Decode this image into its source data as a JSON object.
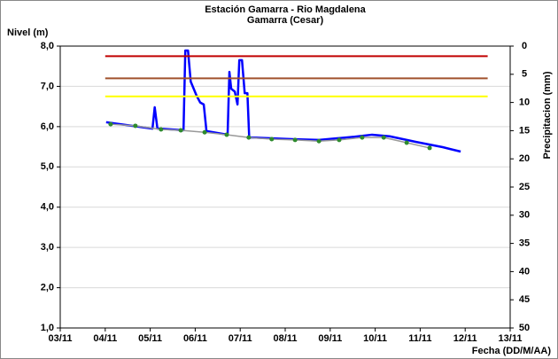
{
  "chart_data": {
    "type": "line",
    "title": "Estación Gamarra - Rio Magdalena",
    "subtitle": "Gamarra (Cesar)",
    "y_label": "Nivel (m)",
    "y2_label": "Precipitacion (mm)",
    "x_label": "Fecha (DD/M/AA)",
    "xlim": [
      3,
      13
    ],
    "xticks": [
      {
        "value": 3,
        "label": "03/11"
      },
      {
        "value": 4,
        "label": "04/11"
      },
      {
        "value": 5,
        "label": "05/11"
      },
      {
        "value": 6,
        "label": "06/11"
      },
      {
        "value": 7,
        "label": "07/11"
      },
      {
        "value": 8,
        "label": "08/11"
      },
      {
        "value": 9,
        "label": "09/11"
      },
      {
        "value": 10,
        "label": "10/11"
      },
      {
        "value": 11,
        "label": "11/11"
      },
      {
        "value": 12,
        "label": "12/11"
      },
      {
        "value": 13,
        "label": "13/11"
      }
    ],
    "ylim": [
      1,
      8
    ],
    "yticks": [
      {
        "value": 1,
        "label": "1,0"
      },
      {
        "value": 2,
        "label": "2,0"
      },
      {
        "value": 3,
        "label": "3,0"
      },
      {
        "value": 4,
        "label": "4,0"
      },
      {
        "value": 5,
        "label": "5,0"
      },
      {
        "value": 6,
        "label": "6,0"
      },
      {
        "value": 7,
        "label": "7,0"
      },
      {
        "value": 8,
        "label": "8,0"
      }
    ],
    "y2lim": [
      50,
      0
    ],
    "y2ticks": [
      0,
      5,
      10,
      15,
      20,
      25,
      30,
      35,
      40,
      45,
      50
    ],
    "grid": true,
    "series": [
      {
        "color": "#0000ff",
        "width": 2.5,
        "markers": false,
        "x": [
          4.02,
          5.05,
          5.1,
          5.16,
          5.22,
          5.74,
          5.78,
          5.84,
          5.9,
          6.03,
          6.11,
          6.19,
          6.25,
          6.72,
          6.76,
          6.8,
          6.88,
          6.94,
          6.98,
          7.04,
          7.1,
          7.16,
          7.2,
          7.26,
          8.16,
          8.75,
          9.54,
          9.93,
          10.32,
          10.91,
          11.5,
          11.9
        ],
        "values": [
          6.11,
          5.95,
          6.48,
          5.95,
          5.95,
          5.91,
          7.89,
          7.89,
          7.12,
          6.77,
          6.6,
          6.55,
          5.89,
          5.8,
          7.36,
          6.94,
          6.87,
          6.55,
          7.65,
          7.65,
          6.83,
          6.83,
          5.73,
          5.73,
          5.69,
          5.67,
          5.75,
          5.8,
          5.76,
          5.62,
          5.49,
          5.38
        ]
      },
      {
        "color": "#999999",
        "width": 1.5,
        "markers": true,
        "marker_color": "#2e8b2e",
        "x": [
          4.12,
          4.67,
          5.24,
          5.68,
          6.21,
          6.7,
          7.19,
          7.7,
          8.22,
          8.75,
          9.2,
          9.71,
          10.19,
          10.7,
          11.21
        ],
        "values": [
          6.06,
          6.02,
          5.93,
          5.91,
          5.86,
          5.8,
          5.73,
          5.69,
          5.67,
          5.64,
          5.67,
          5.73,
          5.73,
          5.6,
          5.47
        ]
      },
      {
        "color": "#c00000",
        "width": 2,
        "markers": false,
        "x": [
          4,
          12.5
        ],
        "values": [
          7.75,
          7.75
        ]
      },
      {
        "color": "#a0522d",
        "width": 2,
        "markers": false,
        "x": [
          4,
          12.5
        ],
        "values": [
          7.2,
          7.2
        ]
      },
      {
        "color": "#ffff00",
        "width": 2,
        "markers": false,
        "x": [
          4,
          12.5
        ],
        "values": [
          6.75,
          6.75
        ]
      }
    ]
  }
}
